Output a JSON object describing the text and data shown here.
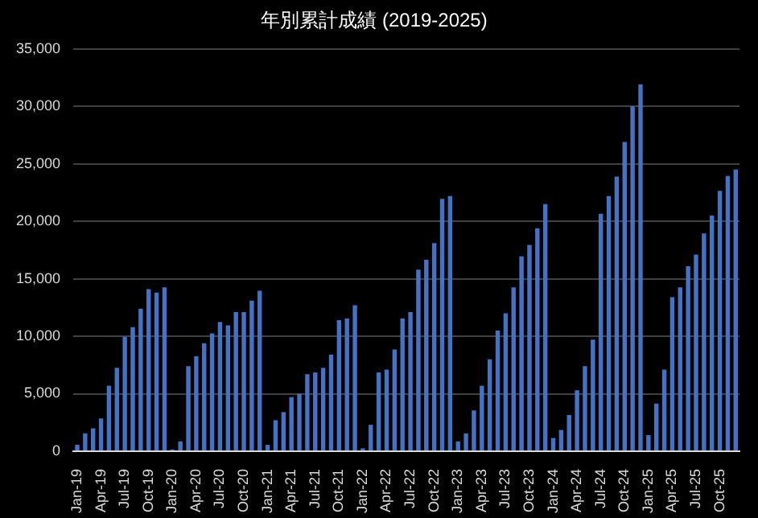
{
  "chart_data": {
    "type": "bar",
    "title": "年別累計成績 (2019-2025)",
    "categories": [
      "Jan-19",
      null,
      null,
      "Apr-19",
      null,
      null,
      "Jul-19",
      null,
      null,
      "Oct-19",
      null,
      null,
      "Jan-20",
      null,
      null,
      "Apr-20",
      null,
      null,
      "Jul-20",
      null,
      null,
      "Oct-20",
      null,
      null,
      "Jan-21",
      null,
      null,
      "Apr-21",
      null,
      null,
      "Jul-21",
      null,
      null,
      "Oct-21",
      null,
      null,
      "Jan-22",
      null,
      null,
      "Apr-22",
      null,
      null,
      "Jul-22",
      null,
      null,
      "Oct-22",
      null,
      null,
      "Jan-23",
      null,
      null,
      "Apr-23",
      null,
      null,
      "Jul-23",
      null,
      null,
      "Oct-23",
      null,
      null,
      "Jan-24",
      null,
      null,
      "Apr-24",
      null,
      null,
      "Jul-24",
      null,
      null,
      "Oct-24",
      null,
      null,
      "Jan-25",
      null,
      null,
      "Apr-25",
      null,
      null,
      "Jul-25",
      null,
      null,
      "Oct-25",
      null,
      null
    ],
    "values": [
      550,
      1550,
      2000,
      2850,
      5700,
      7250,
      9950,
      10800,
      12400,
      14100,
      13800,
      14250,
      150,
      850,
      7400,
      8250,
      9400,
      10250,
      11250,
      10950,
      12100,
      12100,
      13100,
      13950,
      550,
      2700,
      3400,
      4700,
      5000,
      6700,
      6850,
      7250,
      8400,
      11400,
      11550,
      12700,
      250,
      2300,
      6850,
      7100,
      8850,
      11550,
      12100,
      15800,
      16650,
      18100,
      21950,
      22200,
      850,
      1550,
      3550,
      5700,
      8000,
      10500,
      12000,
      14250,
      16950,
      17950,
      19400,
      21500,
      1150,
      1850,
      3150,
      5300,
      7400,
      9700,
      20650,
      22200,
      23900,
      26900,
      30000,
      31900,
      1400,
      4150,
      7100,
      13400,
      14250,
      16100,
      17100,
      18950,
      20500,
      22650,
      23950,
      24500
    ],
    "color": "#4472c4",
    "ylim": [
      0,
      35000
    ],
    "yticks": [
      {
        "value": 0,
        "label": "0"
      },
      {
        "value": 5000,
        "label": "5,000"
      },
      {
        "value": 10000,
        "label": "10,000"
      },
      {
        "value": 15000,
        "label": "15,000"
      },
      {
        "value": 20000,
        "label": "20,000"
      },
      {
        "value": 25000,
        "label": "25,000"
      },
      {
        "value": 30000,
        "label": "30,000"
      },
      {
        "value": 35000,
        "label": "35,000"
      }
    ],
    "grid": "y"
  }
}
